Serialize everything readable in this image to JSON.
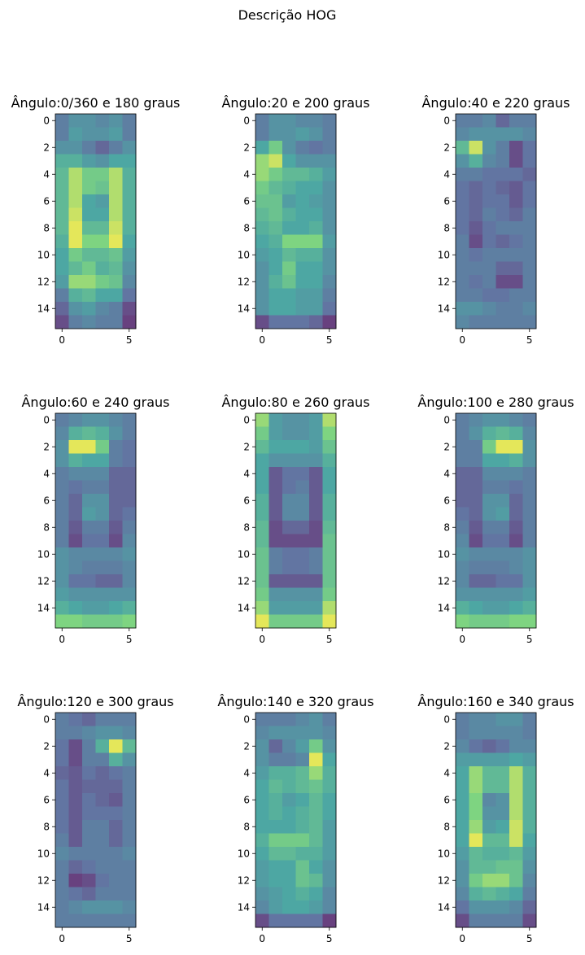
{
  "figure": {
    "suptitle": "Descrição HOG"
  },
  "colormap": {
    "name": "viridis",
    "stops": [
      "#440154",
      "#3b528b",
      "#21918c",
      "#5ec962",
      "#fde725"
    ],
    "alpha": 0.8
  },
  "chart_data": [
    {
      "type": "heatmap",
      "title": "Ângulo:0/360 e 180 graus",
      "xticks": [
        0,
        5
      ],
      "yticks": [
        0,
        2,
        4,
        6,
        8,
        10,
        12,
        14
      ],
      "xlim": [
        -0.5,
        5.5
      ],
      "ylim": [
        15.5,
        -0.5
      ],
      "z": [
        [
          0.3,
          0.4,
          0.4,
          0.35,
          0.4,
          0.3
        ],
        [
          0.3,
          0.45,
          0.4,
          0.4,
          0.45,
          0.3
        ],
        [
          0.4,
          0.4,
          0.3,
          0.2,
          0.3,
          0.4
        ],
        [
          0.55,
          0.55,
          0.45,
          0.4,
          0.5,
          0.5
        ],
        [
          0.6,
          0.85,
          0.7,
          0.7,
          0.85,
          0.55
        ],
        [
          0.6,
          0.85,
          0.7,
          0.65,
          0.85,
          0.55
        ],
        [
          0.6,
          0.85,
          0.5,
          0.45,
          0.85,
          0.55
        ],
        [
          0.6,
          0.9,
          0.5,
          0.5,
          0.85,
          0.55
        ],
        [
          0.6,
          0.95,
          0.6,
          0.6,
          0.9,
          0.55
        ],
        [
          0.55,
          0.95,
          0.75,
          0.75,
          0.95,
          0.5
        ],
        [
          0.5,
          0.7,
          0.6,
          0.6,
          0.65,
          0.45
        ],
        [
          0.5,
          0.6,
          0.7,
          0.55,
          0.6,
          0.4
        ],
        [
          0.45,
          0.8,
          0.8,
          0.7,
          0.65,
          0.35
        ],
        [
          0.3,
          0.55,
          0.6,
          0.5,
          0.5,
          0.25
        ],
        [
          0.2,
          0.4,
          0.45,
          0.35,
          0.3,
          0.1
        ],
        [
          0.1,
          0.3,
          0.35,
          0.3,
          0.3,
          0.05
        ]
      ]
    },
    {
      "type": "heatmap",
      "title": "Ângulo:20 e 200 graus",
      "xticks": [
        0,
        5
      ],
      "yticks": [
        0,
        2,
        4,
        6,
        8,
        10,
        12,
        14
      ],
      "xlim": [
        -0.5,
        5.5
      ],
      "ylim": [
        15.5,
        -0.5
      ],
      "z": [
        [
          0.3,
          0.4,
          0.4,
          0.35,
          0.35,
          0.3
        ],
        [
          0.3,
          0.4,
          0.4,
          0.45,
          0.4,
          0.3
        ],
        [
          0.5,
          0.7,
          0.4,
          0.3,
          0.25,
          0.3
        ],
        [
          0.8,
          0.9,
          0.5,
          0.4,
          0.4,
          0.4
        ],
        [
          0.8,
          0.7,
          0.6,
          0.6,
          0.55,
          0.45
        ],
        [
          0.7,
          0.6,
          0.55,
          0.5,
          0.5,
          0.4
        ],
        [
          0.65,
          0.65,
          0.45,
          0.5,
          0.45,
          0.4
        ],
        [
          0.6,
          0.65,
          0.55,
          0.5,
          0.5,
          0.4
        ],
        [
          0.55,
          0.6,
          0.5,
          0.5,
          0.55,
          0.4
        ],
        [
          0.5,
          0.55,
          0.75,
          0.75,
          0.75,
          0.45
        ],
        [
          0.45,
          0.5,
          0.6,
          0.55,
          0.55,
          0.4
        ],
        [
          0.4,
          0.5,
          0.7,
          0.5,
          0.5,
          0.4
        ],
        [
          0.4,
          0.55,
          0.65,
          0.5,
          0.5,
          0.35
        ],
        [
          0.4,
          0.5,
          0.5,
          0.45,
          0.45,
          0.3
        ],
        [
          0.4,
          0.5,
          0.5,
          0.45,
          0.45,
          0.25
        ],
        [
          0.1,
          0.25,
          0.25,
          0.25,
          0.2,
          0.05
        ]
      ]
    },
    {
      "type": "heatmap",
      "title": "Ângulo:40 e 220 graus",
      "xticks": [
        0,
        5
      ],
      "yticks": [
        0,
        2,
        4,
        6,
        8,
        10,
        12,
        14
      ],
      "xlim": [
        -0.5,
        5.5
      ],
      "ylim": [
        15.5,
        -0.5
      ],
      "z": [
        [
          0.3,
          0.3,
          0.35,
          0.2,
          0.3,
          0.3
        ],
        [
          0.35,
          0.4,
          0.4,
          0.4,
          0.4,
          0.35
        ],
        [
          0.6,
          0.9,
          0.4,
          0.3,
          0.1,
          0.25
        ],
        [
          0.4,
          0.55,
          0.35,
          0.3,
          0.1,
          0.25
        ],
        [
          0.3,
          0.3,
          0.25,
          0.25,
          0.25,
          0.2
        ],
        [
          0.25,
          0.2,
          0.25,
          0.2,
          0.15,
          0.25
        ],
        [
          0.25,
          0.2,
          0.25,
          0.25,
          0.15,
          0.25
        ],
        [
          0.25,
          0.2,
          0.3,
          0.25,
          0.2,
          0.3
        ],
        [
          0.25,
          0.15,
          0.25,
          0.3,
          0.3,
          0.3
        ],
        [
          0.3,
          0.1,
          0.25,
          0.2,
          0.25,
          0.3
        ],
        [
          0.3,
          0.25,
          0.3,
          0.3,
          0.3,
          0.3
        ],
        [
          0.3,
          0.3,
          0.3,
          0.2,
          0.2,
          0.3
        ],
        [
          0.3,
          0.25,
          0.3,
          0.1,
          0.1,
          0.3
        ],
        [
          0.3,
          0.3,
          0.25,
          0.25,
          0.3,
          0.3
        ],
        [
          0.4,
          0.4,
          0.35,
          0.3,
          0.3,
          0.35
        ],
        [
          0.35,
          0.3,
          0.3,
          0.3,
          0.3,
          0.3
        ]
      ]
    },
    {
      "type": "heatmap",
      "title": "Ângulo:60 e 240 graus",
      "xticks": [
        0,
        5
      ],
      "yticks": [
        0,
        2,
        4,
        6,
        8,
        10,
        12,
        14
      ],
      "xlim": [
        -0.5,
        5.5
      ],
      "ylim": [
        15.5,
        -0.5
      ],
      "z": [
        [
          0.3,
          0.35,
          0.4,
          0.4,
          0.35,
          0.3
        ],
        [
          0.35,
          0.55,
          0.6,
          0.55,
          0.4,
          0.3
        ],
        [
          0.4,
          0.95,
          0.95,
          0.7,
          0.3,
          0.25
        ],
        [
          0.4,
          0.55,
          0.5,
          0.5,
          0.3,
          0.25
        ],
        [
          0.3,
          0.35,
          0.35,
          0.35,
          0.2,
          0.2
        ],
        [
          0.3,
          0.25,
          0.3,
          0.3,
          0.2,
          0.2
        ],
        [
          0.3,
          0.2,
          0.4,
          0.4,
          0.2,
          0.2
        ],
        [
          0.3,
          0.2,
          0.45,
          0.4,
          0.2,
          0.25
        ],
        [
          0.3,
          0.15,
          0.3,
          0.3,
          0.15,
          0.3
        ],
        [
          0.3,
          0.1,
          0.25,
          0.25,
          0.1,
          0.35
        ],
        [
          0.4,
          0.35,
          0.35,
          0.35,
          0.35,
          0.4
        ],
        [
          0.4,
          0.35,
          0.3,
          0.3,
          0.3,
          0.35
        ],
        [
          0.4,
          0.25,
          0.25,
          0.2,
          0.2,
          0.35
        ],
        [
          0.45,
          0.4,
          0.4,
          0.4,
          0.4,
          0.4
        ],
        [
          0.55,
          0.5,
          0.45,
          0.45,
          0.5,
          0.55
        ],
        [
          0.75,
          0.75,
          0.7,
          0.7,
          0.7,
          0.75
        ]
      ]
    },
    {
      "type": "heatmap",
      "title": "Ângulo:80 e 260 graus",
      "xticks": [
        0,
        5
      ],
      "yticks": [
        0,
        2,
        4,
        6,
        8,
        10,
        12,
        14
      ],
      "xlim": [
        -0.5,
        5.5
      ],
      "ylim": [
        15.5,
        -0.5
      ],
      "z": [
        [
          0.8,
          0.45,
          0.4,
          0.4,
          0.45,
          0.85
        ],
        [
          0.7,
          0.45,
          0.4,
          0.4,
          0.45,
          0.75
        ],
        [
          0.6,
          0.5,
          0.5,
          0.5,
          0.45,
          0.65
        ],
        [
          0.5,
          0.4,
          0.4,
          0.4,
          0.4,
          0.55
        ],
        [
          0.5,
          0.15,
          0.25,
          0.25,
          0.15,
          0.5
        ],
        [
          0.5,
          0.15,
          0.25,
          0.3,
          0.15,
          0.5
        ],
        [
          0.55,
          0.15,
          0.35,
          0.35,
          0.15,
          0.55
        ],
        [
          0.55,
          0.15,
          0.35,
          0.35,
          0.15,
          0.55
        ],
        [
          0.6,
          0.1,
          0.2,
          0.2,
          0.1,
          0.6
        ],
        [
          0.6,
          0.1,
          0.1,
          0.1,
          0.1,
          0.65
        ],
        [
          0.65,
          0.3,
          0.25,
          0.25,
          0.3,
          0.65
        ],
        [
          0.65,
          0.3,
          0.25,
          0.25,
          0.3,
          0.65
        ],
        [
          0.65,
          0.15,
          0.15,
          0.15,
          0.15,
          0.65
        ],
        [
          0.7,
          0.4,
          0.4,
          0.4,
          0.4,
          0.7
        ],
        [
          0.8,
          0.45,
          0.45,
          0.45,
          0.45,
          0.85
        ],
        [
          0.95,
          0.7,
          0.7,
          0.7,
          0.7,
          0.95
        ]
      ]
    },
    {
      "type": "heatmap",
      "title": "Ângulo:100 e 280 graus",
      "xticks": [
        0,
        5
      ],
      "yticks": [
        0,
        2,
        4,
        6,
        8,
        10,
        12,
        14
      ],
      "xlim": [
        -0.5,
        5.5
      ],
      "ylim": [
        15.5,
        -0.5
      ],
      "z": [
        [
          0.3,
          0.35,
          0.4,
          0.4,
          0.35,
          0.3
        ],
        [
          0.3,
          0.4,
          0.55,
          0.6,
          0.55,
          0.35
        ],
        [
          0.3,
          0.3,
          0.7,
          0.95,
          0.95,
          0.4
        ],
        [
          0.3,
          0.3,
          0.5,
          0.5,
          0.55,
          0.4
        ],
        [
          0.2,
          0.2,
          0.35,
          0.35,
          0.35,
          0.3
        ],
        [
          0.2,
          0.2,
          0.3,
          0.3,
          0.25,
          0.3
        ],
        [
          0.2,
          0.2,
          0.4,
          0.4,
          0.2,
          0.3
        ],
        [
          0.25,
          0.2,
          0.4,
          0.45,
          0.2,
          0.3
        ],
        [
          0.3,
          0.15,
          0.3,
          0.3,
          0.15,
          0.3
        ],
        [
          0.35,
          0.1,
          0.25,
          0.25,
          0.1,
          0.3
        ],
        [
          0.4,
          0.35,
          0.35,
          0.35,
          0.35,
          0.4
        ],
        [
          0.35,
          0.3,
          0.3,
          0.3,
          0.35,
          0.4
        ],
        [
          0.35,
          0.2,
          0.2,
          0.25,
          0.25,
          0.4
        ],
        [
          0.4,
          0.4,
          0.4,
          0.4,
          0.4,
          0.45
        ],
        [
          0.55,
          0.5,
          0.45,
          0.45,
          0.5,
          0.55
        ],
        [
          0.75,
          0.7,
          0.7,
          0.7,
          0.75,
          0.75
        ]
      ]
    },
    {
      "type": "heatmap",
      "title": "Ângulo:120 e 300 graus",
      "xticks": [
        0,
        5
      ],
      "yticks": [
        0,
        2,
        4,
        6,
        8,
        10,
        12,
        14
      ],
      "xlim": [
        -0.5,
        5.5
      ],
      "ylim": [
        15.5,
        -0.5
      ],
      "z": [
        [
          0.3,
          0.25,
          0.2,
          0.3,
          0.3,
          0.3
        ],
        [
          0.3,
          0.3,
          0.35,
          0.4,
          0.4,
          0.35
        ],
        [
          0.25,
          0.1,
          0.3,
          0.55,
          0.95,
          0.6
        ],
        [
          0.25,
          0.1,
          0.3,
          0.3,
          0.55,
          0.4
        ],
        [
          0.2,
          0.15,
          0.25,
          0.2,
          0.25,
          0.3
        ],
        [
          0.25,
          0.15,
          0.2,
          0.2,
          0.2,
          0.3
        ],
        [
          0.25,
          0.15,
          0.25,
          0.2,
          0.15,
          0.3
        ],
        [
          0.25,
          0.15,
          0.25,
          0.25,
          0.25,
          0.3
        ],
        [
          0.25,
          0.15,
          0.3,
          0.3,
          0.2,
          0.3
        ],
        [
          0.3,
          0.15,
          0.3,
          0.3,
          0.2,
          0.3
        ],
        [
          0.35,
          0.3,
          0.3,
          0.3,
          0.3,
          0.35
        ],
        [
          0.3,
          0.2,
          0.25,
          0.3,
          0.3,
          0.3
        ],
        [
          0.3,
          0.05,
          0.1,
          0.25,
          0.3,
          0.3
        ],
        [
          0.3,
          0.25,
          0.2,
          0.3,
          0.3,
          0.3
        ],
        [
          0.3,
          0.35,
          0.4,
          0.4,
          0.4,
          0.35
        ],
        [
          0.3,
          0.3,
          0.3,
          0.3,
          0.3,
          0.3
        ]
      ]
    },
    {
      "type": "heatmap",
      "title": "Ângulo:140 e 320 graus",
      "xticks": [
        0,
        5
      ],
      "yticks": [
        0,
        2,
        4,
        6,
        8,
        10,
        12,
        14
      ],
      "xlim": [
        -0.5,
        5.5
      ],
      "ylim": [
        15.5,
        -0.5
      ],
      "z": [
        [
          0.3,
          0.3,
          0.3,
          0.35,
          0.4,
          0.3
        ],
        [
          0.35,
          0.4,
          0.4,
          0.4,
          0.4,
          0.35
        ],
        [
          0.4,
          0.2,
          0.35,
          0.45,
          0.7,
          0.4
        ],
        [
          0.4,
          0.3,
          0.3,
          0.35,
          0.95,
          0.5
        ],
        [
          0.45,
          0.55,
          0.55,
          0.6,
          0.8,
          0.55
        ],
        [
          0.5,
          0.6,
          0.55,
          0.6,
          0.65,
          0.55
        ],
        [
          0.5,
          0.55,
          0.45,
          0.5,
          0.6,
          0.5
        ],
        [
          0.5,
          0.55,
          0.5,
          0.55,
          0.6,
          0.5
        ],
        [
          0.5,
          0.5,
          0.5,
          0.55,
          0.6,
          0.45
        ],
        [
          0.55,
          0.7,
          0.7,
          0.7,
          0.6,
          0.45
        ],
        [
          0.5,
          0.6,
          0.6,
          0.55,
          0.55,
          0.45
        ],
        [
          0.45,
          0.5,
          0.5,
          0.65,
          0.5,
          0.4
        ],
        [
          0.45,
          0.5,
          0.5,
          0.65,
          0.6,
          0.4
        ],
        [
          0.4,
          0.45,
          0.5,
          0.55,
          0.5,
          0.35
        ],
        [
          0.35,
          0.45,
          0.5,
          0.5,
          0.45,
          0.35
        ],
        [
          0.1,
          0.25,
          0.25,
          0.25,
          0.25,
          0.05
        ]
      ]
    },
    {
      "type": "heatmap",
      "title": "Ângulo:160 e 340 graus",
      "xticks": [
        0,
        5
      ],
      "yticks": [
        0,
        2,
        4,
        6,
        8,
        10,
        12,
        14
      ],
      "xlim": [
        -0.5,
        5.5
      ],
      "ylim": [
        15.5,
        -0.5
      ],
      "z": [
        [
          0.3,
          0.35,
          0.35,
          0.4,
          0.4,
          0.3
        ],
        [
          0.3,
          0.35,
          0.35,
          0.35,
          0.35,
          0.3
        ],
        [
          0.35,
          0.25,
          0.2,
          0.25,
          0.35,
          0.35
        ],
        [
          0.45,
          0.45,
          0.45,
          0.45,
          0.5,
          0.45
        ],
        [
          0.5,
          0.8,
          0.6,
          0.6,
          0.85,
          0.55
        ],
        [
          0.5,
          0.8,
          0.6,
          0.6,
          0.85,
          0.55
        ],
        [
          0.5,
          0.75,
          0.35,
          0.4,
          0.85,
          0.55
        ],
        [
          0.5,
          0.75,
          0.4,
          0.4,
          0.85,
          0.55
        ],
        [
          0.5,
          0.8,
          0.45,
          0.5,
          0.9,
          0.55
        ],
        [
          0.5,
          0.95,
          0.6,
          0.6,
          0.9,
          0.5
        ],
        [
          0.45,
          0.6,
          0.55,
          0.55,
          0.6,
          0.45
        ],
        [
          0.4,
          0.6,
          0.6,
          0.65,
          0.65,
          0.4
        ],
        [
          0.4,
          0.7,
          0.8,
          0.8,
          0.65,
          0.35
        ],
        [
          0.35,
          0.55,
          0.6,
          0.55,
          0.5,
          0.3
        ],
        [
          0.25,
          0.4,
          0.4,
          0.4,
          0.35,
          0.2
        ],
        [
          0.1,
          0.3,
          0.3,
          0.3,
          0.3,
          0.1
        ]
      ]
    }
  ]
}
